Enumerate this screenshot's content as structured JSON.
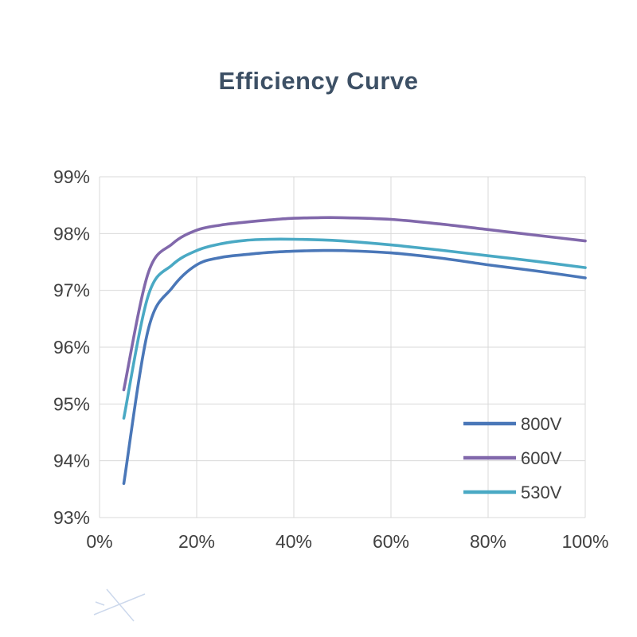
{
  "page": {
    "background": "#ffffff"
  },
  "chart_data": {
    "type": "line",
    "title": "Efficiency Curve",
    "title_color": "#3d5065",
    "axis_color": "#404040",
    "grid_color": "#d9d9d9",
    "grid": true,
    "x_unit": "%",
    "y_unit": "%",
    "xlabel": "",
    "ylabel": "",
    "xlim": [
      0,
      100
    ],
    "ylim": [
      93,
      99
    ],
    "x_ticks": [
      0,
      20,
      40,
      60,
      80,
      100
    ],
    "y_ticks": [
      93,
      94,
      95,
      96,
      97,
      98,
      99
    ],
    "x": [
      5,
      10,
      15,
      20,
      25,
      30,
      35,
      40,
      45,
      50,
      60,
      70,
      80,
      90,
      100
    ],
    "series": [
      {
        "name": "800V",
        "color": "#4a77b8",
        "values": [
          93.6,
          96.3,
          97.05,
          97.45,
          97.58,
          97.63,
          97.67,
          97.69,
          97.7,
          97.7,
          97.66,
          97.57,
          97.45,
          97.34,
          97.22
        ]
      },
      {
        "name": "600V",
        "color": "#8168ab",
        "values": [
          95.25,
          97.3,
          97.82,
          98.06,
          98.15,
          98.2,
          98.24,
          98.27,
          98.28,
          98.28,
          98.25,
          98.17,
          98.07,
          97.97,
          97.87
        ]
      },
      {
        "name": "530V",
        "color": "#4aa9c4",
        "values": [
          94.75,
          96.9,
          97.45,
          97.7,
          97.82,
          97.88,
          97.9,
          97.9,
          97.89,
          97.87,
          97.8,
          97.71,
          97.61,
          97.51,
          97.4
        ]
      }
    ],
    "legend": {
      "position": "inside-right",
      "entries": [
        "800V",
        "600V",
        "530V"
      ]
    }
  },
  "watermark": {
    "color": "#ccd8ec"
  }
}
